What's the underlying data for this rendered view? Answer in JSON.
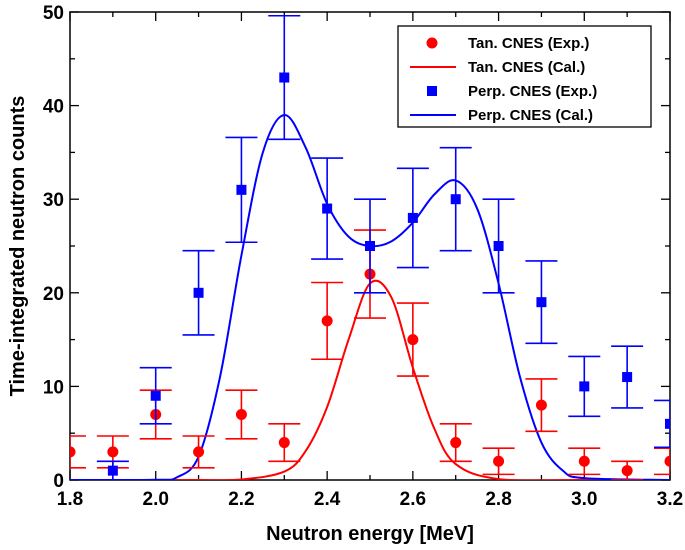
{
  "chart_data": {
    "type": "scatter",
    "xlabel": "Neutron energy [MeV]",
    "ylabel": "Time-integrated neutron counts",
    "xlim": [
      1.8,
      3.2
    ],
    "ylim": [
      0,
      50
    ],
    "xticks": [
      1.8,
      2.0,
      2.2,
      2.4,
      2.6,
      2.8,
      3.0,
      3.2
    ],
    "xtick_labels": [
      "1.8",
      "2.0",
      "2.2",
      "2.4",
      "2.6",
      "2.8",
      "3.0",
      "3.2"
    ],
    "yticks": [
      0,
      10,
      20,
      30,
      40,
      50
    ],
    "ytick_labels": [
      "0",
      "10",
      "20",
      "30",
      "40",
      "50"
    ],
    "legend_position": "top-right",
    "series": [
      {
        "name": "Tan. CNES (Exp.)",
        "kind": "points",
        "marker": "circle",
        "color": "#ff0000",
        "x": [
          1.8,
          1.9,
          2.0,
          2.1,
          2.2,
          2.3,
          2.4,
          2.5,
          2.6,
          2.7,
          2.8,
          2.9,
          3.0,
          3.1,
          3.2
        ],
        "y": [
          3,
          3,
          7,
          3,
          7,
          4,
          17,
          22,
          15,
          4,
          2,
          8,
          2,
          1,
          2
        ],
        "yerr": [
          1.7,
          1.7,
          2.6,
          1.7,
          2.6,
          2.0,
          4.1,
          4.7,
          3.9,
          2.0,
          1.4,
          2.8,
          1.4,
          1.0,
          1.4
        ]
      },
      {
        "name": "Tan. CNES (Cal.)",
        "kind": "line",
        "color": "#ff0000",
        "x": [
          1.8,
          2.0,
          2.1,
          2.2,
          2.3,
          2.35,
          2.4,
          2.45,
          2.5,
          2.55,
          2.6,
          2.65,
          2.7,
          2.8,
          3.0,
          3.2
        ],
        "y": [
          0,
          0,
          0,
          0.05,
          0.9,
          3.1,
          7.8,
          15.0,
          21.0,
          19.5,
          12.0,
          5.5,
          1.7,
          0.1,
          0,
          0
        ]
      },
      {
        "name": "Perp. CNES (Exp.)",
        "kind": "points",
        "marker": "square",
        "color": "#0000ff",
        "x": [
          1.9,
          2.0,
          2.1,
          2.2,
          2.3,
          2.4,
          2.5,
          2.6,
          2.7,
          2.8,
          2.9,
          3.0,
          3.1,
          3.2
        ],
        "y": [
          1,
          9,
          20,
          31,
          43,
          29,
          25,
          28,
          30,
          25,
          19,
          10,
          11,
          6
        ],
        "yerr": [
          1.0,
          3.0,
          4.5,
          5.6,
          6.6,
          5.4,
          5.0,
          5.3,
          5.5,
          5.0,
          4.4,
          3.2,
          3.3,
          2.5
        ]
      },
      {
        "name": "Perp. CNES (Cal.)",
        "kind": "line",
        "color": "#0000ff",
        "x": [
          1.8,
          2.0,
          2.05,
          2.1,
          2.15,
          2.2,
          2.25,
          2.3,
          2.35,
          2.4,
          2.45,
          2.5,
          2.55,
          2.6,
          2.65,
          2.7,
          2.75,
          2.8,
          2.85,
          2.9,
          2.95,
          3.0,
          3.2
        ],
        "y": [
          0,
          0.02,
          0.3,
          2.5,
          11.0,
          24.0,
          35.0,
          39.0,
          35.5,
          29.5,
          26.0,
          25.0,
          25.5,
          27.5,
          30.5,
          32.0,
          29.0,
          21.0,
          11.0,
          4.0,
          1.0,
          0.2,
          0
        ]
      }
    ]
  }
}
